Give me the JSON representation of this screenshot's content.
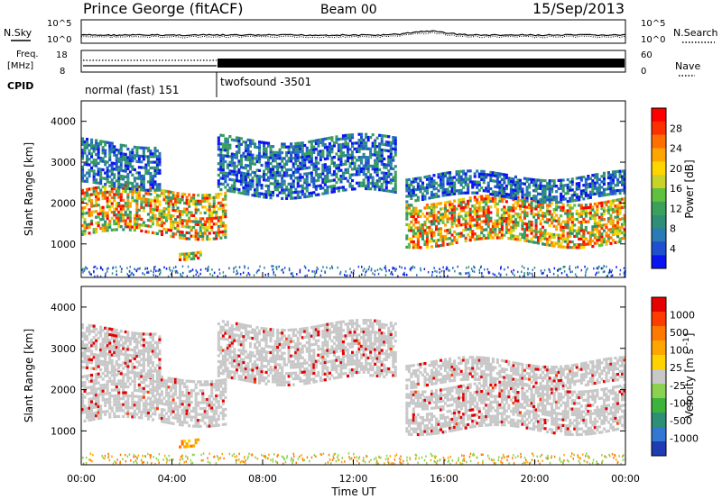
{
  "header": {
    "station": "Prince George (fitACF)",
    "beam": "Beam 00",
    "date": "15/Sep/2013"
  },
  "top_panels": {
    "nsky_label": "N.Sky",
    "nsearch_label": "N.Search",
    "noise_ticks_left": [
      "10^5",
      "10^0"
    ],
    "noise_ticks_right": [
      "10^5",
      "10^0"
    ],
    "freq_label": "Freq.",
    "freq_unit": "[MHz]",
    "freq_ticks": [
      "18",
      "8"
    ],
    "nave_label": "Nave",
    "nave_ticks": [
      "60",
      "0"
    ],
    "cpid_label": "CPID",
    "cpid_segments": [
      {
        "name": "normal (fast) 151",
        "start_hour": 0,
        "end_hour": 6
      },
      {
        "name": "twofsound -3501",
        "start_hour": 6,
        "end_hour": 24
      }
    ]
  },
  "chart_data": [
    {
      "type": "heatmap",
      "title": "",
      "variable": "Power",
      "ylabel": "Slant Range [km]",
      "xlabel": "Time UT",
      "xlim": [
        "00:00",
        "00:00"
      ],
      "x_ticks": [
        "00:00",
        "04:00",
        "08:00",
        "12:00",
        "16:00",
        "20:00",
        "00:00"
      ],
      "ylim": [
        180,
        4500
      ],
      "y_ticks": [
        1000,
        2000,
        3000,
        4000
      ],
      "colorbar": {
        "label": "Power [dB]",
        "ticks": [
          "28",
          "24",
          "20",
          "16",
          "12",
          "8",
          "4"
        ],
        "scale": [
          "#0a14f0",
          "#1e50d0",
          "#2a7ab4",
          "#2e8e76",
          "#3aa05a",
          "#60c040",
          "#c8d228",
          "#ffd500",
          "#ffa500",
          "#ff6e00",
          "#ff3000",
          "#ff0000"
        ]
      },
      "echo_bands": [
        {
          "hour_start": 0.0,
          "hour_end": 6.4,
          "range_start": 1200,
          "range_end": 2350,
          "level": "high"
        },
        {
          "hour_start": 4.3,
          "hour_end": 5.3,
          "range_start": 700,
          "range_end": 900,
          "level": "high"
        },
        {
          "hour_start": 0.0,
          "hour_end": 3.5,
          "range_start": 2400,
          "range_end": 3500,
          "level": "low"
        },
        {
          "hour_start": 6.0,
          "hour_end": 13.9,
          "range_start": 2200,
          "range_end": 3600,
          "level": "low"
        },
        {
          "hour_start": 14.3,
          "hour_end": 24.0,
          "range_start": 1000,
          "range_end": 2100,
          "level": "high"
        },
        {
          "hour_start": 14.3,
          "hour_end": 24.0,
          "range_start": 2100,
          "range_end": 2700,
          "level": "low"
        }
      ]
    },
    {
      "type": "heatmap",
      "title": "",
      "variable": "Velocity",
      "ylabel": "Slant Range [km]",
      "xlabel": "Time UT",
      "xlim": [
        "00:00",
        "00:00"
      ],
      "x_ticks": [
        "00:00",
        "04:00",
        "08:00",
        "12:00",
        "16:00",
        "20:00",
        "00:00"
      ],
      "ylim": [
        180,
        4500
      ],
      "y_ticks": [
        1000,
        2000,
        3000,
        4000
      ],
      "colorbar": {
        "label": "Velocity [m s^-1]",
        "ticks": [
          "1000",
          "500",
          "100",
          "25",
          "-25",
          "-100",
          "-500",
          "-1000"
        ],
        "scale": [
          "#1e3cb4",
          "#3278d2",
          "#2e8e76",
          "#3cb43c",
          "#8cd250",
          "#c8c8c8",
          "#ffd200",
          "#ffa500",
          "#ff7800",
          "#ff3c00",
          "#e60000"
        ]
      },
      "echo_bands": [
        {
          "hour_start": 0.0,
          "hour_end": 6.4,
          "range_start": 1200,
          "range_end": 2350,
          "level": "ground"
        },
        {
          "hour_start": 4.3,
          "hour_end": 5.3,
          "range_start": 700,
          "range_end": 900,
          "level": "negative"
        },
        {
          "hour_start": 0.0,
          "hour_end": 3.5,
          "range_start": 2400,
          "range_end": 3500,
          "level": "ground"
        },
        {
          "hour_start": 6.0,
          "hour_end": 13.9,
          "range_start": 2200,
          "range_end": 3600,
          "level": "ground"
        },
        {
          "hour_start": 14.3,
          "hour_end": 24.0,
          "range_start": 1000,
          "range_end": 2100,
          "level": "ground"
        },
        {
          "hour_start": 14.3,
          "hour_end": 24.0,
          "range_start": 2100,
          "range_end": 2700,
          "level": "ground"
        }
      ]
    }
  ],
  "colors": {
    "axis": "#000000",
    "ground_scatter": "#c8c8c8"
  }
}
